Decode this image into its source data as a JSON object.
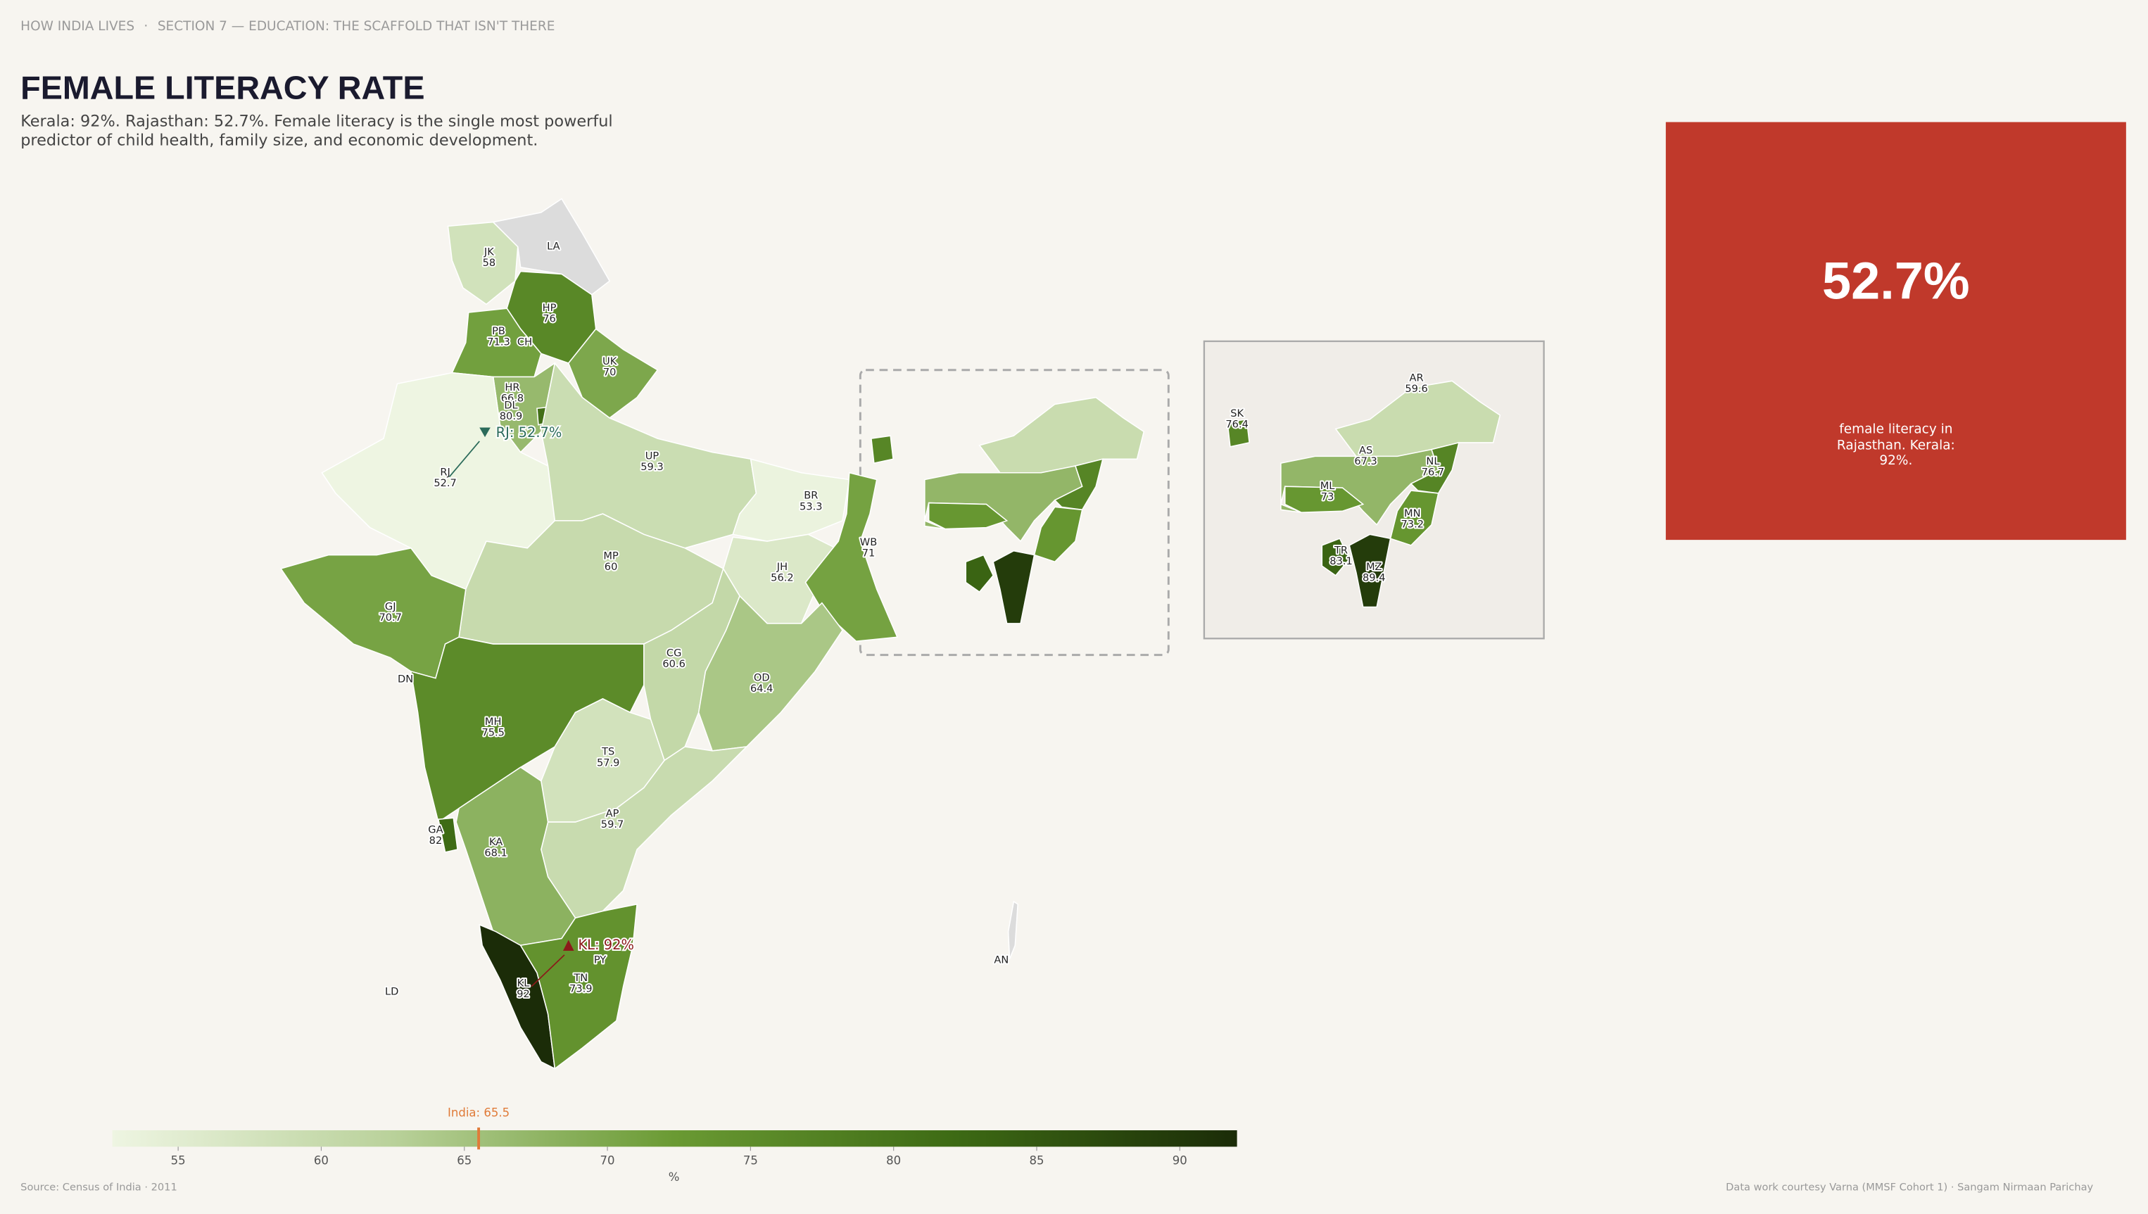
{
  "header": {
    "series": "HOW INDIA LIVES",
    "section": "SECTION 7 — EDUCATION: THE SCAFFOLD THAT ISN'T THERE"
  },
  "title": "FEMALE LITERACY RATE",
  "subtitle": "Kerala: 92%. Rajasthan: 52.7%. Female literacy is the single most powerful predictor of child health, family size, and economic development.",
  "map": {
    "no_data_color": "#dcdcdc",
    "states": [
      {
        "code": "JK",
        "value": 58
      },
      {
        "code": "LA",
        "value": null
      },
      {
        "code": "HP",
        "value": 76
      },
      {
        "code": "PB",
        "value": 71.3
      },
      {
        "code": "CH",
        "value": null
      },
      {
        "code": "UK",
        "value": 70
      },
      {
        "code": "HR",
        "value": 66.8
      },
      {
        "code": "DL",
        "value": 80.9
      },
      {
        "code": "RJ",
        "value": 52.7
      },
      {
        "code": "UP",
        "value": 59.3
      },
      {
        "code": "BR",
        "value": 53.3
      },
      {
        "code": "JH",
        "value": 56.2
      },
      {
        "code": "WB",
        "value": 71
      },
      {
        "code": "MP",
        "value": 60
      },
      {
        "code": "GJ",
        "value": 70.7
      },
      {
        "code": "DN",
        "value": null
      },
      {
        "code": "CG",
        "value": 60.6
      },
      {
        "code": "OD",
        "value": 64.4
      },
      {
        "code": "MH",
        "value": 75.5
      },
      {
        "code": "TS",
        "value": 57.9
      },
      {
        "code": "AP",
        "value": 59.7
      },
      {
        "code": "GA",
        "value": 82
      },
      {
        "code": "KA",
        "value": 68.1
      },
      {
        "code": "KL",
        "value": 92
      },
      {
        "code": "TN",
        "value": 73.9
      },
      {
        "code": "PY",
        "value": null
      },
      {
        "code": "LD",
        "value": null
      },
      {
        "code": "AN",
        "value": null
      },
      {
        "code": "SK",
        "value": 76.4
      },
      {
        "code": "AR",
        "value": 59.6
      },
      {
        "code": "AS",
        "value": 67.3
      },
      {
        "code": "ML",
        "value": 73
      },
      {
        "code": "NL",
        "value": 76.7
      },
      {
        "code": "MN",
        "value": 73.2
      },
      {
        "code": "TR",
        "value": 83.1
      },
      {
        "code": "MZ",
        "value": 89.4
      }
    ],
    "annotations": [
      {
        "label": "RJ: 52.7%",
        "color": "#2b6b5a"
      },
      {
        "label": "KL: 92%",
        "color": "#8b1a1a"
      }
    ]
  },
  "legend": {
    "scale": [
      52.7,
      92
    ],
    "colors": [
      "#eef5e2",
      "#b9d19a",
      "#6a9a33",
      "#3d6a14",
      "#1b2c08"
    ],
    "ticks": [
      55,
      60,
      65,
      70,
      75,
      80,
      85,
      90
    ],
    "unit": "%",
    "national": {
      "label": "India: 65.5",
      "value": 65.5,
      "color": "#e07b39"
    }
  },
  "stat_card": {
    "value": "52.7%",
    "caption": "female literacy in Rajasthan. Kerala: 92%.",
    "color": "#c0392b"
  },
  "footer": {
    "source": "Source: Census of India · 2011",
    "credit": "Data work courtesy Varna (MMSF Cohort 1) · Sangam Nirmaan Parichay"
  }
}
